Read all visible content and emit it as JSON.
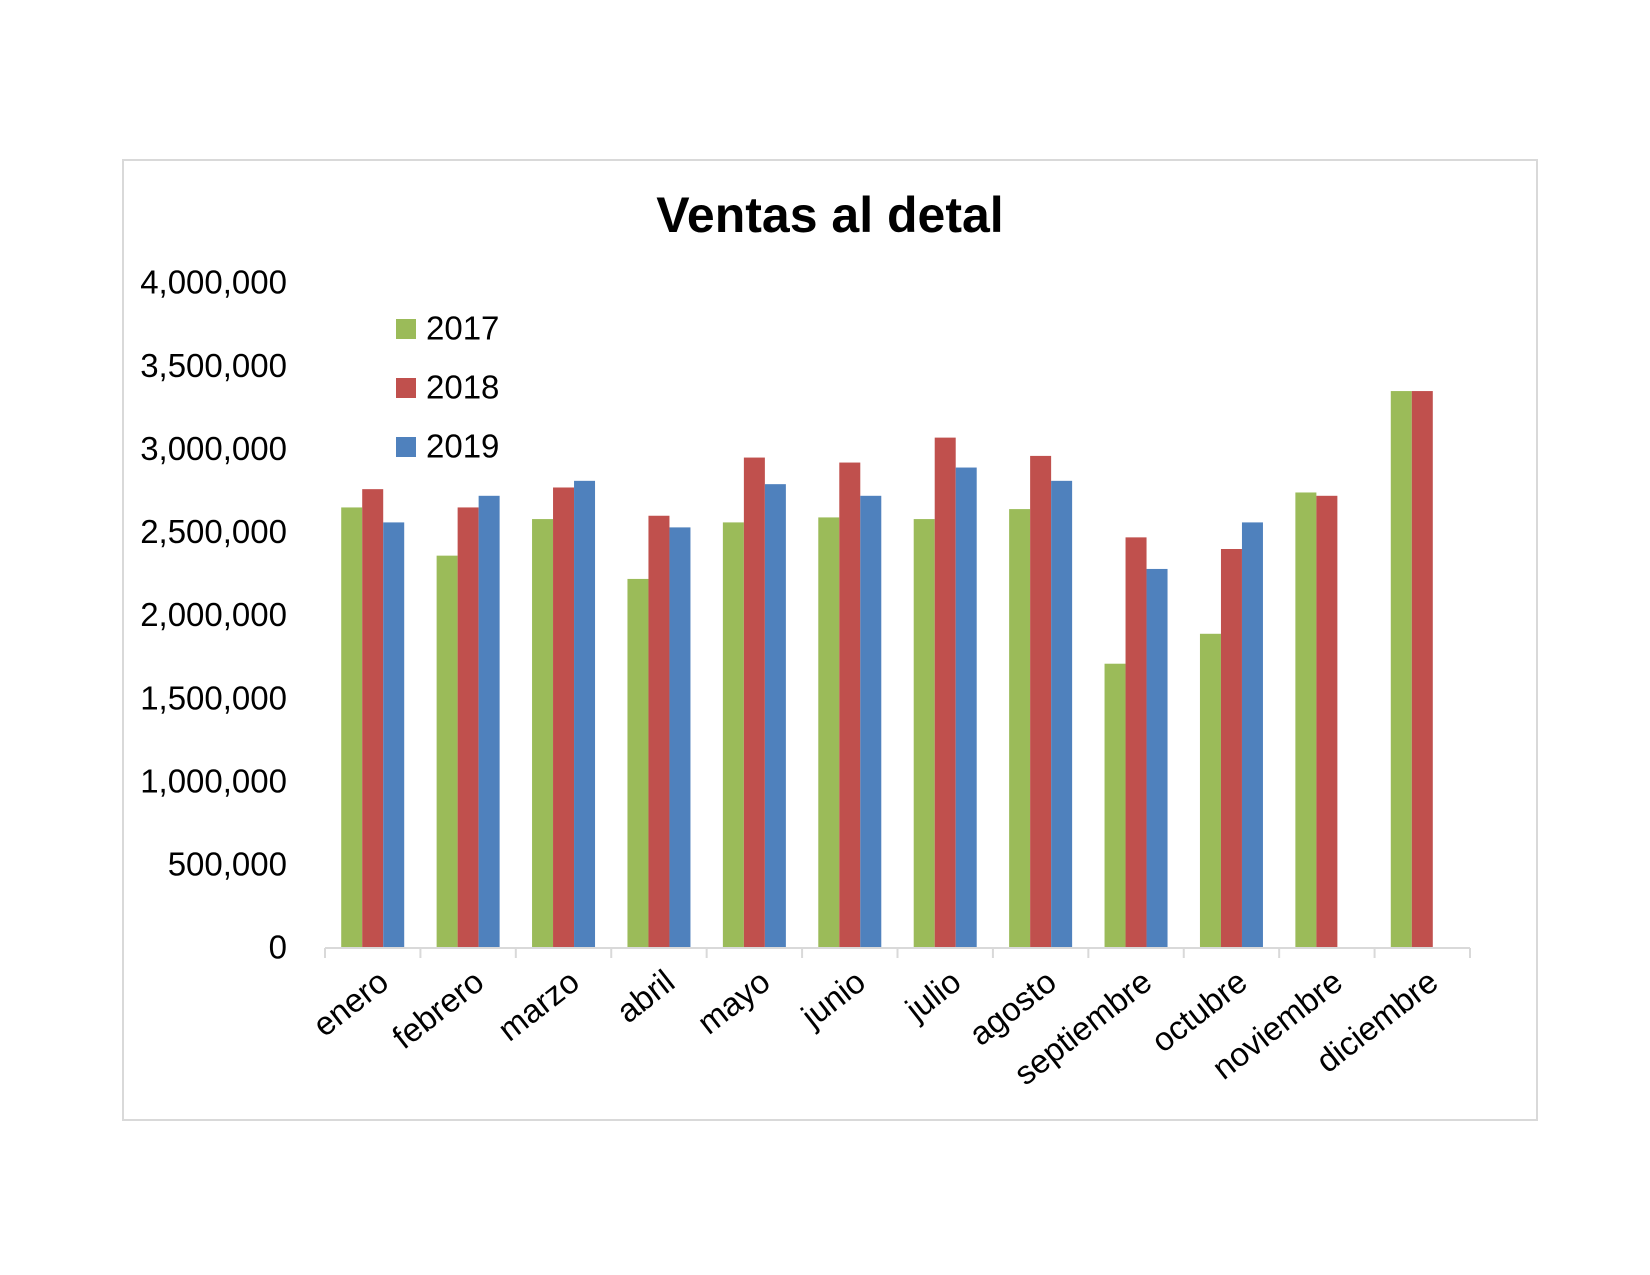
{
  "chart_data": {
    "type": "bar",
    "title": "Ventas al detal",
    "xlabel": "",
    "ylabel": "",
    "ylim": [
      0,
      4000000
    ],
    "yticks": [
      "0",
      "500,000",
      "1,000,000",
      "1,500,000",
      "2,000,000",
      "2,500,000",
      "3,000,000",
      "3,500,000",
      "4,000,000"
    ],
    "grid": false,
    "legend_position": "top-left",
    "categories": [
      "enero",
      "febrero",
      "marzo",
      "abril",
      "mayo",
      "junio",
      "julio",
      "agosto",
      "septiembre",
      "octubre",
      "noviembre",
      "diciembre"
    ],
    "series": [
      {
        "name": "2017",
        "color": "#9bbb59",
        "values": [
          2650000,
          2360000,
          2580000,
          2220000,
          2560000,
          2590000,
          2580000,
          2640000,
          1710000,
          1890000,
          2740000,
          3350000
        ]
      },
      {
        "name": "2018",
        "color": "#c0504d",
        "values": [
          2760000,
          2650000,
          2770000,
          2600000,
          2950000,
          2920000,
          3070000,
          2960000,
          2470000,
          2400000,
          2720000,
          3350000
        ]
      },
      {
        "name": "2019",
        "color": "#4f81bd",
        "values": [
          2560000,
          2720000,
          2810000,
          2530000,
          2790000,
          2720000,
          2890000,
          2810000,
          2280000,
          2560000,
          null,
          null
        ]
      }
    ]
  }
}
